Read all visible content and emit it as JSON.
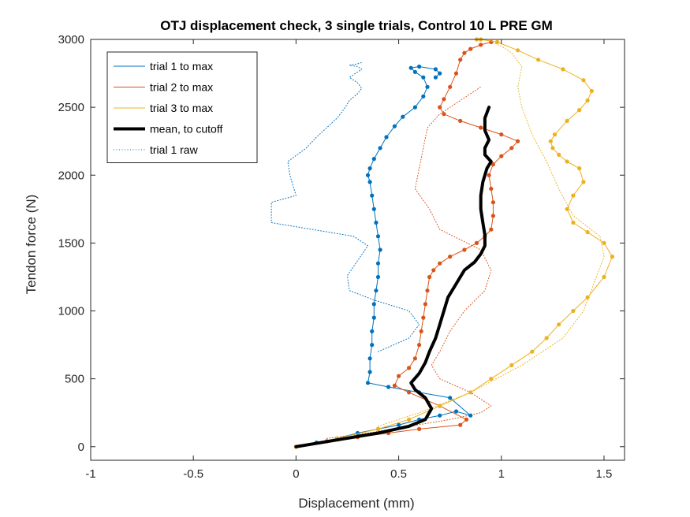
{
  "chart_data": {
    "type": "line",
    "title": "OTJ displacement check, 3 single trials, Control 10 L PRE GM",
    "xlabel": "Displacement (mm)",
    "ylabel": "Tendon force (N)",
    "xlim": [
      -1,
      1.6
    ],
    "ylim": [
      -100,
      3000
    ],
    "xticks": [
      -1,
      -0.5,
      0,
      0.5,
      1,
      1.5
    ],
    "xtick_labels": [
      "-1",
      "-0.5",
      "0",
      "0.5",
      "1",
      "1.5"
    ],
    "yticks": [
      0,
      500,
      1000,
      1500,
      2000,
      2500,
      3000
    ],
    "ytick_labels": [
      "0",
      "500",
      "1000",
      "1500",
      "2000",
      "2500",
      "3000"
    ],
    "grid": false,
    "legend_position": "top-left",
    "series": [
      {
        "name": "trial 1 to max",
        "color": "#0072BD",
        "style": "solid-markers",
        "x": [
          0,
          0.1,
          0.2,
          0.3,
          0.4,
          0.5,
          0.6,
          0.7,
          0.78,
          0.85,
          0.75,
          0.6,
          0.45,
          0.35,
          0.36,
          0.36,
          0.37,
          0.37,
          0.38,
          0.38,
          0.39,
          0.4,
          0.4,
          0.41,
          0.4,
          0.39,
          0.38,
          0.37,
          0.36,
          0.35,
          0.36,
          0.38,
          0.41,
          0.44,
          0.48,
          0.52,
          0.58,
          0.62,
          0.64,
          0.62,
          0.58,
          0.56,
          0.6,
          0.68,
          0.7,
          0.68
        ],
        "y": [
          0,
          30,
          60,
          100,
          130,
          160,
          200,
          230,
          260,
          230,
          360,
          400,
          440,
          470,
          550,
          650,
          750,
          850,
          950,
          1050,
          1150,
          1250,
          1350,
          1450,
          1550,
          1650,
          1750,
          1850,
          1950,
          2000,
          2050,
          2120,
          2200,
          2280,
          2360,
          2430,
          2500,
          2580,
          2650,
          2720,
          2760,
          2790,
          2800,
          2780,
          2750,
          2720
        ]
      },
      {
        "name": "trial 2 to max",
        "color": "#D95319",
        "style": "solid-markers",
        "x": [
          0,
          0.15,
          0.3,
          0.45,
          0.6,
          0.8,
          0.83,
          0.7,
          0.55,
          0.48,
          0.5,
          0.55,
          0.58,
          0.6,
          0.61,
          0.62,
          0.63,
          0.64,
          0.65,
          0.67,
          0.7,
          0.75,
          0.82,
          0.88,
          0.92,
          0.95,
          0.96,
          0.96,
          0.95,
          0.94,
          0.96,
          1.0,
          1.05,
          1.08,
          1.0,
          0.9,
          0.8,
          0.72,
          0.7,
          0.72,
          0.75,
          0.78,
          0.8,
          0.82,
          0.85,
          0.9,
          0.95
        ],
        "y": [
          0,
          40,
          70,
          100,
          130,
          160,
          200,
          300,
          400,
          450,
          520,
          580,
          650,
          750,
          850,
          950,
          1050,
          1150,
          1250,
          1300,
          1350,
          1400,
          1450,
          1500,
          1550,
          1600,
          1700,
          1800,
          1900,
          2000,
          2080,
          2140,
          2200,
          2250,
          2300,
          2350,
          2400,
          2450,
          2500,
          2560,
          2650,
          2750,
          2850,
          2900,
          2930,
          2960,
          2980
        ]
      },
      {
        "name": "trial 3 to max",
        "color": "#EDB120",
        "style": "solid-markers",
        "x": [
          0,
          0.2,
          0.4,
          0.55,
          0.7,
          0.85,
          0.95,
          1.05,
          1.15,
          1.22,
          1.28,
          1.35,
          1.42,
          1.5,
          1.54,
          1.5,
          1.42,
          1.35,
          1.32,
          1.35,
          1.4,
          1.38,
          1.32,
          1.28,
          1.25,
          1.24,
          1.26,
          1.32,
          1.38,
          1.42,
          1.44,
          1.4,
          1.3,
          1.18,
          1.08,
          0.98,
          0.9,
          0.88
        ],
        "y": [
          0,
          60,
          130,
          200,
          300,
          400,
          500,
          600,
          700,
          800,
          900,
          1000,
          1100,
          1250,
          1400,
          1500,
          1580,
          1650,
          1750,
          1850,
          1950,
          2050,
          2100,
          2150,
          2200,
          2250,
          2300,
          2400,
          2480,
          2550,
          2620,
          2700,
          2780,
          2850,
          2920,
          2980,
          3000,
          3000
        ]
      },
      {
        "name": "mean, to cutoff",
        "color": "#000000",
        "style": "thick",
        "x": [
          0,
          0.2,
          0.4,
          0.55,
          0.63,
          0.66,
          0.63,
          0.58,
          0.56,
          0.6,
          0.63,
          0.65,
          0.68,
          0.7,
          0.72,
          0.74,
          0.78,
          0.82,
          0.87,
          0.9,
          0.92,
          0.92,
          0.91,
          0.9,
          0.9,
          0.91,
          0.93,
          0.95,
          0.92,
          0.92,
          0.94,
          0.92,
          0.92,
          0.94
        ],
        "y": [
          0,
          50,
          100,
          150,
          200,
          280,
          360,
          420,
          470,
          540,
          620,
          700,
          800,
          900,
          1000,
          1100,
          1200,
          1300,
          1360,
          1420,
          1480,
          1560,
          1650,
          1750,
          1850,
          1950,
          2050,
          2100,
          2150,
          2200,
          2260,
          2330,
          2420,
          2500
        ]
      },
      {
        "name": "trial 1 raw",
        "color": "#0072BD",
        "style": "dotted",
        "x": [
          0.4,
          0.55,
          0.6,
          0.55,
          0.38,
          0.26,
          0.25,
          0.35,
          0.28,
          -0.12,
          -0.12,
          0.0,
          -0.03,
          -0.04,
          0.05,
          0.1,
          0.15,
          0.2,
          0.24,
          0.26,
          0.3,
          0.32,
          0.3,
          0.26,
          0.3,
          0.32,
          0.3,
          0.26,
          0.3,
          0.32
        ],
        "y": [
          700,
          800,
          900,
          1000,
          1080,
          1150,
          1260,
          1480,
          1550,
          1650,
          1800,
          1850,
          2000,
          2100,
          2200,
          2280,
          2350,
          2420,
          2500,
          2550,
          2600,
          2640,
          2680,
          2720,
          2760,
          2780,
          2800,
          2810,
          2820,
          2830
        ]
      },
      {
        "name": "",
        "color": "#D95319",
        "style": "dotted",
        "x": [
          0.15,
          0.35,
          0.55,
          0.75,
          0.9,
          0.95,
          0.85,
          0.7,
          0.66,
          0.7,
          0.75,
          0.82,
          0.92,
          0.95,
          0.9,
          0.7,
          0.65,
          0.58,
          0.6,
          0.62,
          0.64,
          0.7,
          0.8,
          0.9
        ],
        "y": [
          60,
          100,
          150,
          200,
          250,
          300,
          400,
          500,
          600,
          700,
          850,
          1000,
          1150,
          1300,
          1450,
          1600,
          1750,
          1900,
          2050,
          2200,
          2350,
          2450,
          2550,
          2650
        ]
      },
      {
        "name": "",
        "color": "#EDB120",
        "style": "dotted",
        "x": [
          0.4,
          0.6,
          0.85,
          1.1,
          1.3,
          1.4,
          1.45,
          1.5,
          1.48,
          1.35,
          1.28,
          1.22,
          1.15,
          1.1,
          1.08,
          1.1,
          1.05,
          1.0,
          0.95
        ],
        "y": [
          150,
          250,
          400,
          600,
          800,
          1000,
          1200,
          1400,
          1550,
          1700,
          1900,
          2100,
          2300,
          2500,
          2650,
          2800,
          2900,
          2950,
          2980
        ]
      }
    ]
  }
}
